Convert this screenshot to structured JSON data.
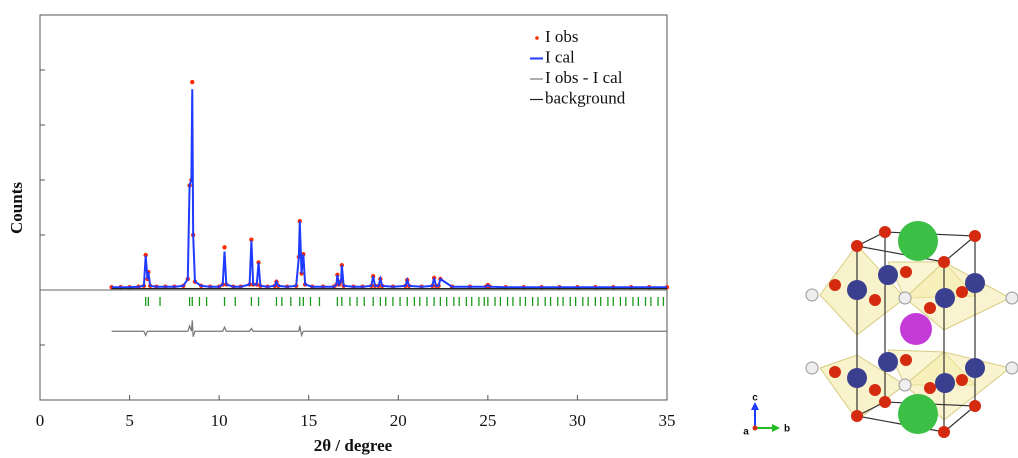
{
  "chart_data": {
    "type": "line",
    "x_label": "2θ / degree",
    "y_label": "Counts",
    "xlim": [
      0,
      35
    ],
    "xticks": [
      0,
      5,
      10,
      15,
      20,
      25,
      30,
      35
    ],
    "ylim": [
      -40,
      100
    ],
    "yticks": [
      -20,
      0,
      20,
      40,
      60,
      80
    ],
    "legend": "upper right",
    "x": [
      4.0,
      4.5,
      5.0,
      5.5,
      5.8,
      5.9,
      6.0,
      6.05,
      6.15,
      6.5,
      7.0,
      7.5,
      8.0,
      8.25,
      8.35,
      8.45,
      8.5,
      8.55,
      8.65,
      9.0,
      9.5,
      10.0,
      10.2,
      10.3,
      10.4,
      10.8,
      11.2,
      11.7,
      11.8,
      11.9,
      12.1,
      12.2,
      12.3,
      12.7,
      13.1,
      13.2,
      13.3,
      13.8,
      14.3,
      14.45,
      14.5,
      14.6,
      14.7,
      14.8,
      15.2,
      15.8,
      16.4,
      16.55,
      16.6,
      16.7,
      16.8,
      16.85,
      16.95,
      17.5,
      18.0,
      18.5,
      18.6,
      18.7,
      18.9,
      19.0,
      19.1,
      19.7,
      20.4,
      20.5,
      20.6,
      21.3,
      21.9,
      22.0,
      22.1,
      22.25,
      22.35,
      23.0,
      24.0,
      24.9,
      25.0,
      25.1,
      26.0,
      27.0,
      28.0,
      29.0,
      30.0,
      31.0,
      32.0,
      33.0,
      34.0,
      35.0
    ],
    "series": [
      {
        "name": "I obs",
        "mode": "markers",
        "color": "#ff2a00",
        "values": [
          1,
          1,
          1,
          1.2,
          1.5,
          12.7,
          4,
          6.5,
          1.5,
          1.2,
          1.2,
          1.2,
          1.5,
          4,
          38,
          40,
          75.6,
          20,
          3,
          1.5,
          1.2,
          1.2,
          2,
          15.5,
          2,
          1.2,
          1.2,
          2,
          18.3,
          2,
          2,
          10,
          1.5,
          1.2,
          1.5,
          3,
          1.5,
          1.2,
          1.5,
          12,
          25,
          6,
          13,
          2,
          1.2,
          1.2,
          1.2,
          2,
          5.5,
          2,
          3,
          9,
          1.5,
          1.2,
          1.2,
          1.5,
          5,
          1.5,
          1.5,
          4,
          1.5,
          1.2,
          1.5,
          3.6,
          1.5,
          1.2,
          1.5,
          4.4,
          1.5,
          1.5,
          4,
          1.2,
          1.2,
          1.2,
          1.8,
          1.2,
          1,
          1,
          1,
          1,
          1,
          1,
          1,
          1,
          1,
          1
        ]
      },
      {
        "name": "I cal",
        "mode": "lines",
        "color": "#1f3bff",
        "values": [
          1,
          1,
          1,
          1.2,
          1.5,
          12.5,
          4,
          6.5,
          1.5,
          1.2,
          1.2,
          1.2,
          1.5,
          4,
          38,
          40,
          73,
          20,
          3,
          1.5,
          1.2,
          1.2,
          2,
          14,
          2,
          1.2,
          1.2,
          2,
          18,
          2,
          2,
          10,
          1.5,
          1.2,
          1.5,
          3,
          1.5,
          1.2,
          1.5,
          12,
          25,
          6,
          13,
          2,
          1.2,
          1.2,
          1.2,
          2,
          5.5,
          2,
          3,
          9,
          1.5,
          1.2,
          1.2,
          1.5,
          5,
          1.5,
          1.5,
          4,
          1.5,
          1.2,
          1.5,
          3.6,
          1.5,
          1.2,
          1.5,
          4.4,
          1.5,
          1.5,
          4,
          1.2,
          1.2,
          1.2,
          1.8,
          1.2,
          1,
          1,
          1,
          1,
          1,
          1,
          1,
          1,
          1,
          1
        ]
      },
      {
        "name": "I obs - I cal",
        "mode": "lines",
        "color": "#777777",
        "values": [
          -15,
          -15,
          -15,
          -15,
          -15,
          -16.5,
          -15,
          -15,
          -15,
          -15,
          -15,
          -15,
          -15,
          -15,
          -13,
          -15,
          -11,
          -17,
          -15,
          -15,
          -15,
          -15,
          -15,
          -13.5,
          -15,
          -15,
          -15,
          -15,
          -14,
          -15,
          -15,
          -15,
          -15,
          -15,
          -15,
          -15,
          -15,
          -15,
          -15,
          -15,
          -13,
          -16.5,
          -15,
          -15,
          -15,
          -15,
          -15,
          -15,
          -15,
          -15,
          -15,
          -15,
          -15,
          -15,
          -15,
          -15,
          -15,
          -15,
          -15,
          -15,
          -15,
          -15,
          -15,
          -15,
          -15,
          -15,
          -15,
          -15,
          -15,
          -15,
          -15,
          -15,
          -15,
          -15,
          -15,
          -15,
          -15,
          -15,
          -15,
          -15,
          -15,
          -15,
          -15,
          -15,
          -15,
          -15
        ]
      },
      {
        "name": "background",
        "mode": "lines",
        "color": "#222222",
        "x": [
          4.0,
          35.0
        ],
        "values": [
          0.5,
          0.5
        ]
      }
    ],
    "reflections": {
      "color": "#1a9a1a",
      "x": [
        5.9,
        6.05,
        6.7,
        8.35,
        8.5,
        8.9,
        9.3,
        10.3,
        10.9,
        11.8,
        12.2,
        13.2,
        13.5,
        14.0,
        14.5,
        14.7,
        15.1,
        15.6,
        16.6,
        16.85,
        17.3,
        17.7,
        18.1,
        18.6,
        19.0,
        19.3,
        19.7,
        20.1,
        20.5,
        20.9,
        21.2,
        21.6,
        22.0,
        22.35,
        22.7,
        23.1,
        23.4,
        23.8,
        24.1,
        24.5,
        24.8,
        25.0,
        25.4,
        25.7,
        26.1,
        26.4,
        26.8,
        27.1,
        27.5,
        27.8,
        28.2,
        28.5,
        28.9,
        29.2,
        29.6,
        29.9,
        30.3,
        30.6,
        31.0,
        31.3,
        31.7,
        32.0,
        32.4,
        32.7,
        33.1,
        33.4,
        33.8,
        34.1,
        34.5,
        34.8
      ]
    }
  },
  "structure": {
    "axis_labels": {
      "a": "a",
      "b": "b",
      "c": "c"
    }
  }
}
